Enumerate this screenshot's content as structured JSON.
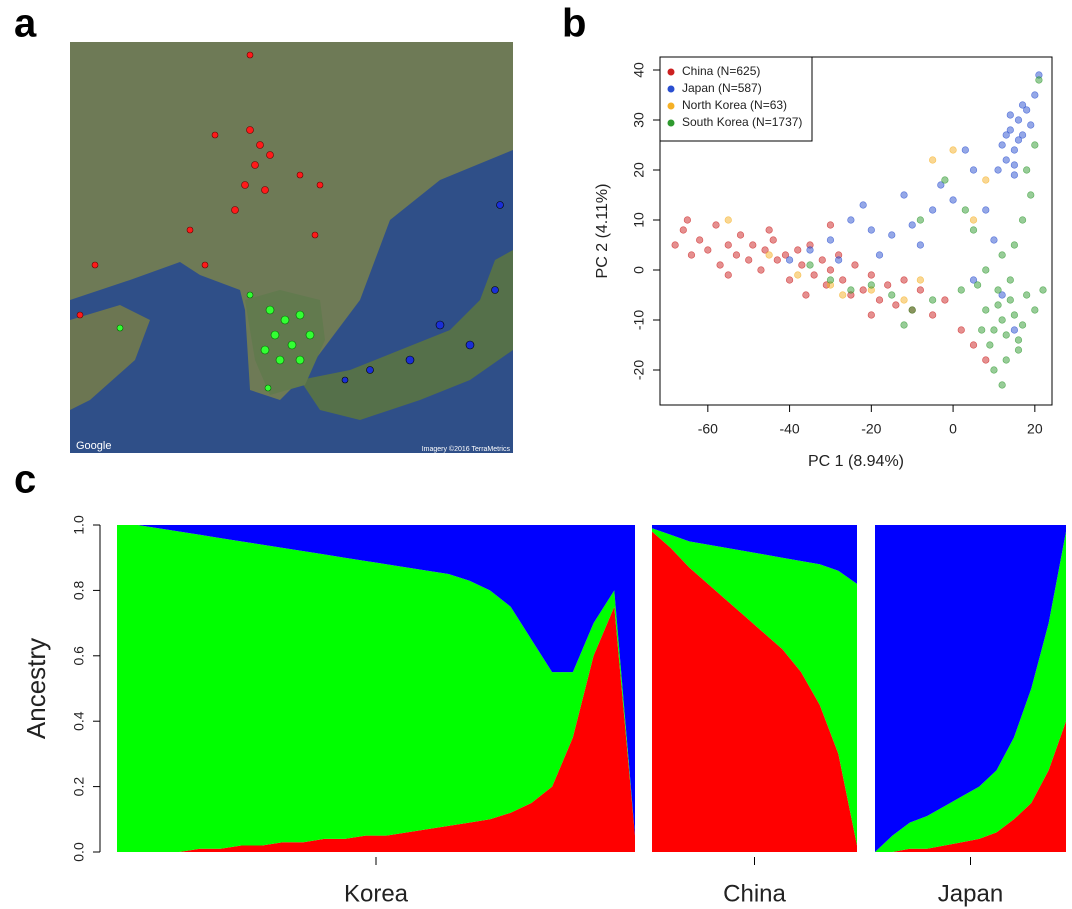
{
  "panel_labels": [
    "a",
    "b",
    "c"
  ],
  "map": {
    "attribution_left": "Google",
    "attribution_right": "Imagery ©2016 TerraMetrics"
  },
  "chart_data": [
    {
      "type": "scatter",
      "xlabel": "PC 1 (8.94%)",
      "ylabel": "PC 2 (4.11%)",
      "xlim": [
        -71.7,
        24.2
      ],
      "ylim": [
        -27,
        42.6
      ],
      "xticks": [
        -60,
        -40,
        -20,
        0,
        20
      ],
      "yticks": [
        -20,
        -10,
        0,
        10,
        20,
        30,
        40
      ],
      "legend": "top-left",
      "series": [
        {
          "name": "China (N=625)",
          "color": "#cc2020",
          "x": [
            -68,
            -66,
            -64,
            -62,
            -60,
            -58,
            -57,
            -55,
            -53,
            -52,
            -50,
            -49,
            -47,
            -46,
            -44,
            -43,
            -41,
            -40,
            -38,
            -37,
            -35,
            -34,
            -32,
            -31,
            -30,
            -28,
            -27,
            -25,
            -24,
            -22,
            -20,
            -18,
            -16,
            -14,
            -12,
            -10,
            -8,
            -5,
            -2,
            2,
            5,
            -65,
            -45,
            -30,
            -55,
            -36,
            -20,
            8
          ],
          "y": [
            5,
            8,
            3,
            6,
            4,
            9,
            1,
            5,
            3,
            7,
            2,
            5,
            0,
            4,
            6,
            2,
            3,
            -2,
            4,
            1,
            5,
            -1,
            2,
            -3,
            0,
            3,
            -2,
            -5,
            1,
            -4,
            -1,
            -6,
            -3,
            -7,
            -2,
            -8,
            -4,
            -9,
            -6,
            -12,
            -15,
            10,
            8,
            9,
            -1,
            -5,
            -9,
            -18
          ]
        },
        {
          "name": "Japan (N=587)",
          "color": "#2a4fd0",
          "x": [
            12,
            14,
            16,
            15,
            17,
            13,
            18,
            11,
            16,
            14,
            19,
            15,
            20,
            21,
            17,
            13,
            15,
            5,
            0,
            -5,
            -10,
            -15,
            -20,
            -25,
            -30,
            -35,
            -40,
            -12,
            -3,
            3,
            8,
            10,
            -8,
            -18,
            12,
            15,
            5,
            -28,
            -22
          ],
          "y": [
            25,
            28,
            30,
            24,
            27,
            22,
            32,
            20,
            26,
            31,
            29,
            21,
            35,
            39,
            33,
            27,
            19,
            20,
            14,
            12,
            9,
            7,
            8,
            10,
            6,
            4,
            2,
            15,
            17,
            24,
            12,
            6,
            5,
            3,
            -5,
            -12,
            -2,
            2,
            13
          ]
        },
        {
          "name": "North Korea (N=63)",
          "color": "#f5b025",
          "x": [
            -55,
            -45,
            -38,
            -27,
            -20,
            -12,
            -5,
            0,
            -8,
            -30,
            5,
            8
          ],
          "y": [
            10,
            3,
            -1,
            -5,
            -4,
            -6,
            22,
            24,
            -2,
            -3,
            10,
            18
          ]
        },
        {
          "name": "South Korea (N=1737)",
          "color": "#2f9a2f",
          "x": [
            8,
            10,
            12,
            14,
            16,
            9,
            11,
            13,
            15,
            17,
            7,
            18,
            10,
            12,
            20,
            6,
            14,
            11,
            16,
            13,
            15,
            17,
            19,
            12,
            20,
            21,
            18,
            8,
            2,
            -5,
            -10,
            -15,
            -20,
            -25,
            -30,
            -35,
            -8,
            -2,
            5,
            -12,
            3,
            22
          ],
          "y": [
            -8,
            -12,
            -10,
            -6,
            -14,
            -15,
            -4,
            -18,
            -9,
            -11,
            -12,
            -5,
            -20,
            -23,
            -8,
            -3,
            -2,
            -7,
            -16,
            -13,
            5,
            10,
            15,
            3,
            25,
            38,
            20,
            0,
            -4,
            -6,
            -8,
            -5,
            -3,
            -4,
            -2,
            1,
            10,
            18,
            8,
            -11,
            12,
            -4
          ]
        }
      ]
    },
    {
      "type": "admixture",
      "ylabel": "Ancestry",
      "ylim": [
        0,
        1
      ],
      "yticks": [
        {
          "value": 0,
          "label": "0.0"
        },
        {
          "value": 0.2,
          "label": "0.2"
        },
        {
          "value": 0.4,
          "label": "0.4"
        },
        {
          "value": 0.6,
          "label": "0.6"
        },
        {
          "value": 0.8,
          "label": "0.8"
        },
        {
          "value": 1,
          "label": "1.0"
        }
      ],
      "groups": [
        {
          "name": "Korea",
          "series": [
            {
              "color": "#ff0000",
              "values": [
                0,
                0,
                0,
                0,
                0.01,
                0.01,
                0.02,
                0.02,
                0.03,
                0.03,
                0.04,
                0.04,
                0.05,
                0.05,
                0.06,
                0.07,
                0.08,
                0.09,
                0.1,
                0.12,
                0.15,
                0.2,
                0.35,
                0.6,
                0.75,
                0.05
              ]
            },
            {
              "color": "#00ff00",
              "values": [
                1,
                1,
                0.99,
                0.98,
                0.96,
                0.95,
                0.93,
                0.92,
                0.9,
                0.89,
                0.87,
                0.86,
                0.84,
                0.83,
                0.81,
                0.79,
                0.77,
                0.74,
                0.7,
                0.63,
                0.5,
                0.35,
                0.2,
                0.1,
                0.05,
                0
              ]
            },
            {
              "color": "#0000ff",
              "values": [
                0,
                0,
                0.01,
                0.02,
                0.03,
                0.04,
                0.05,
                0.06,
                0.07,
                0.08,
                0.09,
                0.1,
                0.11,
                0.12,
                0.13,
                0.14,
                0.15,
                0.17,
                0.2,
                0.25,
                0.35,
                0.45,
                0.45,
                0.3,
                0.2,
                0.95
              ]
            }
          ]
        },
        {
          "name": "China",
          "series": [
            {
              "color": "#ff0000",
              "values": [
                0.98,
                0.93,
                0.87,
                0.82,
                0.77,
                0.72,
                0.67,
                0.62,
                0.55,
                0.45,
                0.3,
                0.02
              ]
            },
            {
              "color": "#00ff00",
              "values": [
                0.01,
                0.04,
                0.08,
                0.12,
                0.16,
                0.2,
                0.24,
                0.28,
                0.34,
                0.43,
                0.56,
                0.8
              ]
            },
            {
              "color": "#0000ff",
              "values": [
                0.01,
                0.03,
                0.05,
                0.06,
                0.07,
                0.08,
                0.09,
                0.1,
                0.11,
                0.12,
                0.14,
                0.18
              ]
            }
          ]
        },
        {
          "name": "Japan",
          "series": [
            {
              "color": "#ff0000",
              "values": [
                0,
                0,
                0.01,
                0.01,
                0.02,
                0.03,
                0.04,
                0.06,
                0.1,
                0.15,
                0.25,
                0.4
              ]
            },
            {
              "color": "#00ff00",
              "values": [
                0,
                0.05,
                0.08,
                0.1,
                0.12,
                0.14,
                0.16,
                0.19,
                0.25,
                0.35,
                0.45,
                0.58
              ]
            },
            {
              "color": "#0000ff",
              "values": [
                1,
                0.95,
                0.91,
                0.89,
                0.86,
                0.83,
                0.8,
                0.75,
                0.65,
                0.5,
                0.3,
                0.02
              ]
            }
          ]
        }
      ]
    }
  ]
}
